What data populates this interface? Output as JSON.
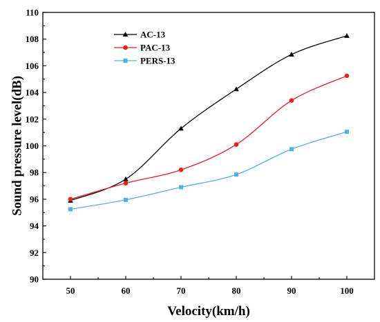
{
  "chart_data": {
    "type": "line",
    "title": "",
    "xlabel": "Velocity(km/h)",
    "ylabel": "Sound pressure level(dB)",
    "x": [
      50,
      60,
      70,
      80,
      90,
      100
    ],
    "xlim": [
      45,
      105
    ],
    "ylim": [
      90,
      110
    ],
    "xticks": [
      50,
      60,
      70,
      80,
      90,
      100
    ],
    "yticks": [
      90,
      92,
      94,
      96,
      98,
      100,
      102,
      104,
      106,
      108,
      110
    ],
    "grid": false,
    "legend_position": "top-left",
    "series": [
      {
        "name": "AC-13",
        "color": "#000000",
        "marker": "triangle",
        "values": [
          95.9,
          97.5,
          101.3,
          104.25,
          106.85,
          108.25
        ]
      },
      {
        "name": "PAC-13",
        "color": "#ee1c1c",
        "marker": "circle",
        "values": [
          96.0,
          97.2,
          98.2,
          100.1,
          103.4,
          105.25
        ]
      },
      {
        "name": "PERS-13",
        "color": "#4db3e6",
        "marker": "square",
        "values": [
          95.25,
          95.95,
          96.9,
          97.85,
          99.75,
          101.05
        ]
      }
    ]
  }
}
